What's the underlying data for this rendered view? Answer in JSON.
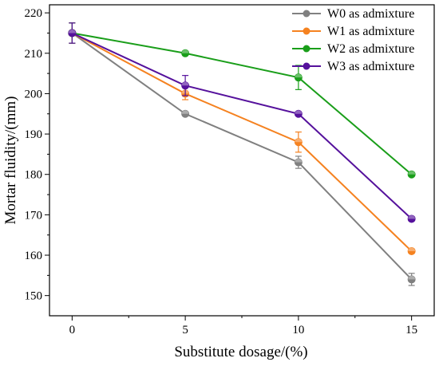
{
  "chart_data": {
    "type": "line",
    "xlabel": "Substitute dosage/(%)",
    "ylabel": "Mortar fluidity/(mm)",
    "x": [
      0,
      5,
      10,
      15
    ],
    "xlim": [
      -1,
      16
    ],
    "ylim": [
      145,
      222
    ],
    "xticks": [
      0,
      5,
      10,
      15
    ],
    "yticks": [
      150,
      160,
      170,
      180,
      190,
      200,
      210,
      220
    ],
    "grid": false,
    "legend": "top-right",
    "series": [
      {
        "name": "W0 as admixture",
        "color": "#808080",
        "values": [
          215,
          195,
          183,
          154
        ],
        "errors": [
          2.5,
          0.5,
          1.5,
          1.5
        ]
      },
      {
        "name": "W1 as admixture",
        "color": "#f58220",
        "values": [
          215,
          200,
          188,
          161
        ],
        "errors": [
          2.5,
          1.5,
          2.5,
          0.5
        ]
      },
      {
        "name": "W2 as admixture",
        "color": "#1a9e1a",
        "values": [
          215,
          210,
          204,
          180
        ],
        "errors": [
          2.5,
          0.5,
          3,
          0.5
        ]
      },
      {
        "name": "W3 as admixture",
        "color": "#55119c",
        "values": [
          215,
          202,
          195,
          169
        ],
        "errors": [
          2.5,
          2.5,
          0.5,
          0.5
        ]
      }
    ]
  }
}
